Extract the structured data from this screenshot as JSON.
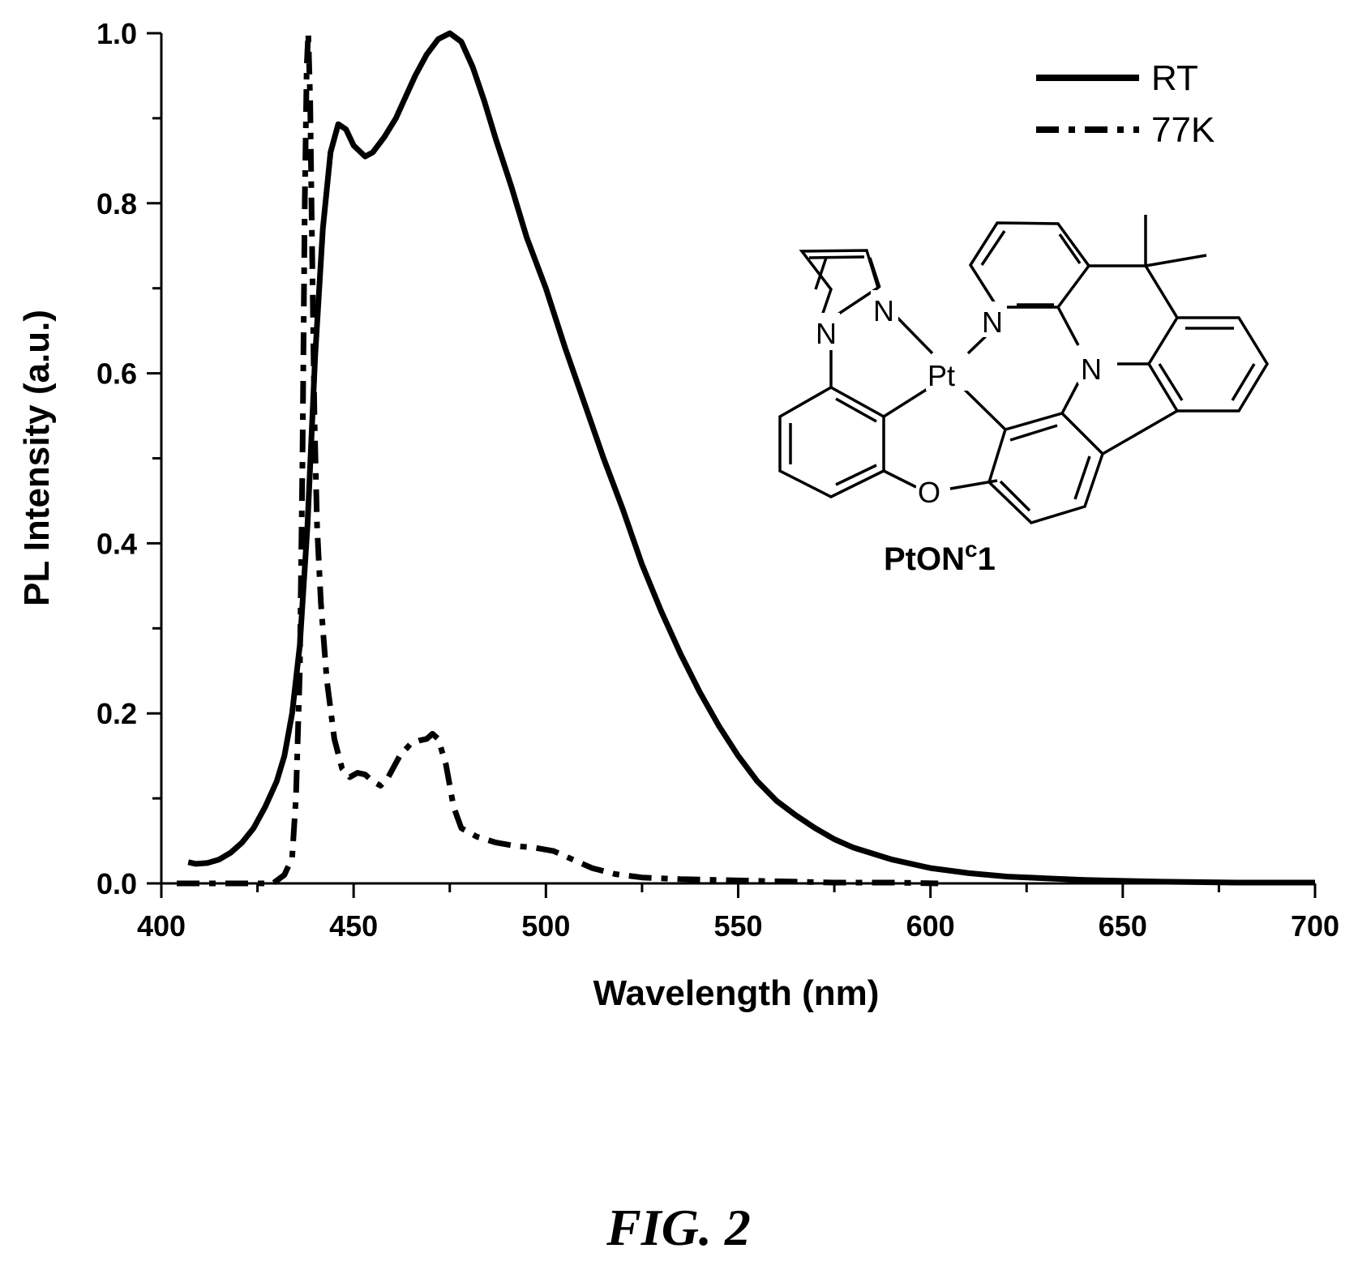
{
  "chart_data": {
    "type": "line",
    "xlabel": "Wavelength (nm)",
    "ylabel": "PL Intensity (a.u.)",
    "xlim": [
      400,
      700
    ],
    "ylim": [
      0.0,
      1.0
    ],
    "x_ticks": [
      "400",
      "450",
      "500",
      "550",
      "600",
      "650",
      "700"
    ],
    "y_ticks": [
      "0.0",
      "0.2",
      "0.4",
      "0.6",
      "0.8",
      "1.0"
    ],
    "grid": false,
    "legend": "top-right",
    "series": [
      {
        "name": "RT",
        "style": "solid",
        "points": [
          [
            407,
            0.025
          ],
          [
            409,
            0.023
          ],
          [
            412,
            0.024
          ],
          [
            415,
            0.028
          ],
          [
            418,
            0.036
          ],
          [
            421,
            0.048
          ],
          [
            424,
            0.065
          ],
          [
            427,
            0.09
          ],
          [
            430,
            0.12
          ],
          [
            432,
            0.15
          ],
          [
            434,
            0.2
          ],
          [
            436,
            0.28
          ],
          [
            438,
            0.42
          ],
          [
            440,
            0.62
          ],
          [
            442,
            0.77
          ],
          [
            444,
            0.86
          ],
          [
            446,
            0.893
          ],
          [
            448,
            0.887
          ],
          [
            450,
            0.868
          ],
          [
            453,
            0.855
          ],
          [
            455,
            0.86
          ],
          [
            458,
            0.878
          ],
          [
            461,
            0.9
          ],
          [
            463,
            0.92
          ],
          [
            466,
            0.95
          ],
          [
            469,
            0.975
          ],
          [
            472,
            0.993
          ],
          [
            475,
            1.0
          ],
          [
            478,
            0.99
          ],
          [
            481,
            0.96
          ],
          [
            484,
            0.92
          ],
          [
            487,
            0.875
          ],
          [
            491,
            0.82
          ],
          [
            495,
            0.76
          ],
          [
            500,
            0.7
          ],
          [
            505,
            0.63
          ],
          [
            510,
            0.565
          ],
          [
            515,
            0.5
          ],
          [
            520,
            0.44
          ],
          [
            525,
            0.375
          ],
          [
            530,
            0.32
          ],
          [
            535,
            0.27
          ],
          [
            540,
            0.225
          ],
          [
            545,
            0.185
          ],
          [
            550,
            0.15
          ],
          [
            555,
            0.12
          ],
          [
            560,
            0.097
          ],
          [
            565,
            0.08
          ],
          [
            570,
            0.065
          ],
          [
            575,
            0.052
          ],
          [
            580,
            0.042
          ],
          [
            590,
            0.028
          ],
          [
            600,
            0.018
          ],
          [
            610,
            0.012
          ],
          [
            620,
            0.008
          ],
          [
            630,
            0.006
          ],
          [
            640,
            0.004
          ],
          [
            650,
            0.003
          ],
          [
            660,
            0.002
          ],
          [
            680,
            0.001
          ],
          [
            700,
            0.001
          ]
        ]
      },
      {
        "name": "77K",
        "style": "dash-dot",
        "points": [
          [
            404,
            0.0
          ],
          [
            420,
            0.0
          ],
          [
            429,
            0.0
          ],
          [
            432,
            0.01
          ],
          [
            434,
            0.03
          ],
          [
            435,
            0.1
          ],
          [
            436,
            0.25
          ],
          [
            436.7,
            0.5
          ],
          [
            437.3,
            0.8
          ],
          [
            437.8,
            0.96
          ],
          [
            438.2,
            1.0
          ],
          [
            438.7,
            0.92
          ],
          [
            439.2,
            0.75
          ],
          [
            439.8,
            0.55
          ],
          [
            440.5,
            0.42
          ],
          [
            441.5,
            0.33
          ],
          [
            443,
            0.24
          ],
          [
            445,
            0.17
          ],
          [
            447,
            0.135
          ],
          [
            449,
            0.125
          ],
          [
            451,
            0.13
          ],
          [
            453,
            0.128
          ],
          [
            455,
            0.12
          ],
          [
            457,
            0.115
          ],
          [
            459,
            0.125
          ],
          [
            462,
            0.15
          ],
          [
            465,
            0.165
          ],
          [
            467,
            0.168
          ],
          [
            469,
            0.17
          ],
          [
            470.5,
            0.176
          ],
          [
            472,
            0.17
          ],
          [
            474,
            0.14
          ],
          [
            476,
            0.09
          ],
          [
            478,
            0.065
          ],
          [
            482,
            0.055
          ],
          [
            487,
            0.048
          ],
          [
            492,
            0.044
          ],
          [
            497,
            0.042
          ],
          [
            502,
            0.038
          ],
          [
            507,
            0.028
          ],
          [
            512,
            0.018
          ],
          [
            518,
            0.011
          ],
          [
            525,
            0.007
          ],
          [
            535,
            0.005
          ],
          [
            545,
            0.004
          ],
          [
            555,
            0.003
          ],
          [
            565,
            0.002
          ],
          [
            575,
            0.001
          ],
          [
            590,
            0.001
          ],
          [
            602,
            0.0
          ]
        ]
      }
    ],
    "annotations": [
      "PtON",
      "c",
      "1"
    ]
  },
  "molecule": {
    "atoms": {
      "pt": "Pt",
      "n": "N",
      "o": "O"
    },
    "label_main": "PtON",
    "label_sup": "c",
    "label_tail": "1"
  },
  "caption": "FIG. 2"
}
